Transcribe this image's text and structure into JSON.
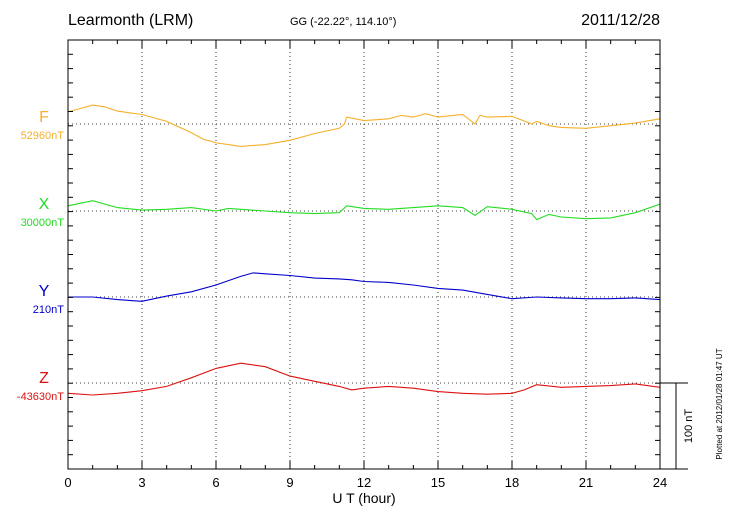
{
  "header": {
    "station": "Learmonth (LRM)",
    "coords": "GG (-22.22°, 114.10°)",
    "date": "2011/12/28"
  },
  "footer": {
    "plotted": "Plotted at 2012/01/28 01:47 UT"
  },
  "colors": {
    "F": "#f5b02a",
    "X": "#22dd22",
    "Y": "#0000cc",
    "Z": "#dd1111"
  },
  "chart_data": {
    "type": "line",
    "xlabel": "U T (hour)",
    "xlim": [
      0,
      24
    ],
    "xticks": [
      0,
      3,
      6,
      9,
      12,
      15,
      18,
      21,
      24
    ],
    "scale_bar": "100 nT",
    "series": [
      {
        "name": "F",
        "baseline": "52960nT",
        "x": [
          0,
          0.5,
          1,
          1.5,
          2,
          3,
          4,
          5,
          5.5,
          5.8,
          6,
          6.5,
          7,
          8,
          9,
          10,
          11,
          11.2,
          11.3,
          12,
          13,
          13.5,
          14,
          14.5,
          15,
          16,
          16.5,
          16.7,
          17,
          18,
          18.8,
          19,
          19.5,
          20,
          21,
          22,
          23,
          24
        ],
        "values": [
          14,
          18,
          22,
          20,
          15,
          11,
          3,
          -10,
          -18,
          -20,
          -22,
          -24,
          -26,
          -24,
          -19,
          -11,
          -5,
          0,
          8,
          4,
          6,
          10,
          8,
          12,
          8,
          11,
          0,
          10,
          8,
          9,
          0,
          3,
          -2,
          -4,
          -5,
          -2,
          1,
          6
        ]
      },
      {
        "name": "X",
        "baseline": "30000nT",
        "x": [
          0,
          1,
          1.5,
          2,
          3,
          4,
          5,
          6,
          6.5,
          7,
          8,
          9,
          10,
          11,
          11.3,
          12,
          13,
          14,
          15,
          16,
          16.5,
          17,
          18,
          18.8,
          19,
          19.5,
          20,
          21,
          22,
          23,
          24
        ],
        "values": [
          6,
          12,
          8,
          4,
          1,
          2,
          4,
          0,
          3,
          2,
          0,
          -2,
          -3,
          -2,
          6,
          3,
          2,
          4,
          6,
          4,
          -5,
          5,
          2,
          -3,
          -10,
          -4,
          -7,
          -9,
          -8,
          -2,
          8
        ]
      },
      {
        "name": "Y",
        "baseline": "210nT",
        "x": [
          0,
          1,
          2,
          3,
          4,
          5,
          6,
          7,
          7.5,
          8,
          9,
          10,
          11,
          11.5,
          12,
          13,
          14,
          15,
          16,
          17,
          18,
          19,
          20,
          21,
          22,
          23,
          24
        ],
        "values": [
          0,
          0,
          -3,
          -5,
          1,
          6,
          14,
          24,
          28,
          27,
          25,
          22,
          21,
          20,
          18,
          17,
          14,
          10,
          8,
          3,
          -2,
          0,
          -1,
          -2,
          -2,
          -1,
          -3
        ]
      },
      {
        "name": "Z",
        "baseline": "-43630nT",
        "x": [
          0,
          1,
          2,
          3,
          4,
          5,
          6,
          7,
          8,
          9,
          10,
          11,
          11.5,
          12,
          13,
          14,
          15,
          16,
          17,
          18,
          18.5,
          19,
          20,
          21,
          22,
          23,
          24
        ],
        "values": [
          -12,
          -14,
          -12,
          -9,
          -4,
          6,
          17,
          23,
          19,
          8,
          2,
          -4,
          -8,
          -6,
          -4,
          -6,
          -10,
          -12,
          -13,
          -12,
          -8,
          -2,
          -5,
          -4,
          -3,
          -1,
          -5
        ]
      }
    ]
  }
}
